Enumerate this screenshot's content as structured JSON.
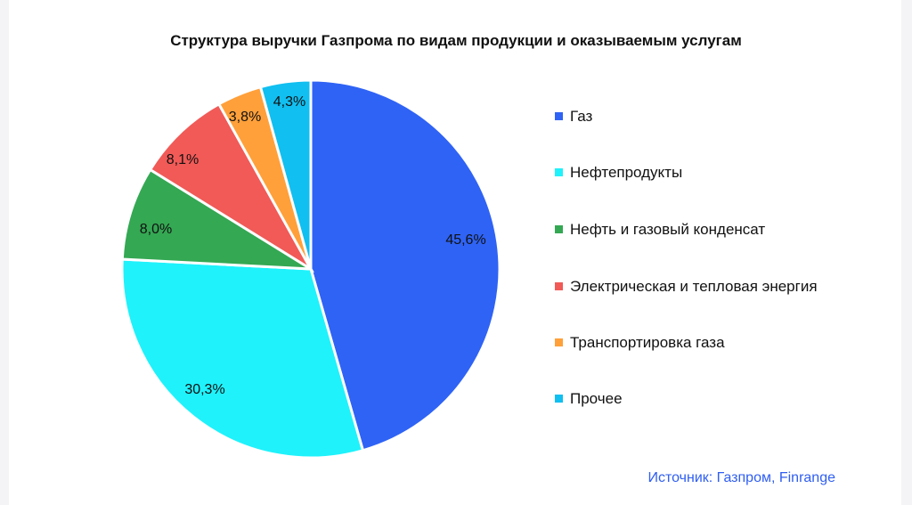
{
  "chart_data": {
    "type": "pie",
    "title": "Структура выручки Газпрома по видам продукции и оказываемым услугам",
    "slices": [
      {
        "label": "Газ",
        "value": 45.6,
        "value_label": "45,6%",
        "color": "#2f63f5"
      },
      {
        "label": "Нефтепродукты",
        "value": 30.3,
        "value_label": "30,3%",
        "color": "#1ff2fb"
      },
      {
        "label": "Нефть и газовый конденсат",
        "value": 8.0,
        "value_label": "8,0%",
        "color": "#34a853"
      },
      {
        "label": "Электрическая и тепловая энергия",
        "value": 8.1,
        "value_label": "8,1%",
        "color": "#f15a57"
      },
      {
        "label": "Транспортировка газа",
        "value": 3.8,
        "value_label": "3,8%",
        "color": "#ffa03a"
      },
      {
        "label": "Прочее",
        "value": 4.3,
        "value_label": "4,3%",
        "color": "#11bff0"
      }
    ],
    "legend_position": "right"
  },
  "source": "Источник: Газпром, Finrange"
}
